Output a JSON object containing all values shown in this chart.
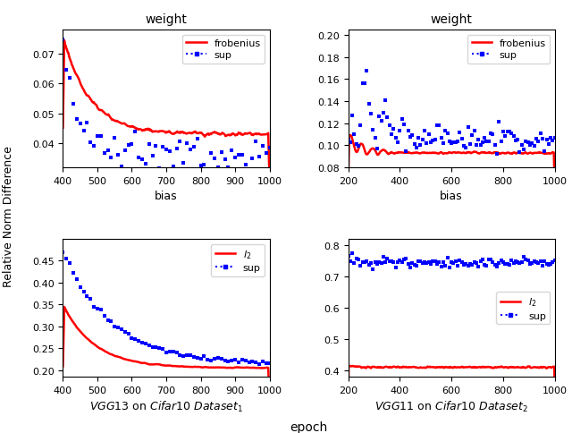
{
  "fig_width": 6.4,
  "fig_height": 4.85,
  "dpi": 100,
  "colors": {
    "red": "#ff0000",
    "blue": "#0000ff"
  },
  "ylabel": "Relative Norm Difference",
  "bottom_xlabel": "epoch",
  "subplots": {
    "top_left": {
      "title": "weight",
      "xlabel": "bias",
      "xlim": [
        400,
        1000
      ],
      "ylim": [
        0.032,
        0.078
      ],
      "yticks": [
        0.04,
        0.05,
        0.06,
        0.07
      ],
      "legend_labels": [
        "frobenius",
        "sup"
      ],
      "legend_loc": "upper right"
    },
    "top_right": {
      "title": "weight",
      "xlabel": "bias",
      "xlim": [
        200,
        1000
      ],
      "ylim": [
        0.08,
        0.205
      ],
      "yticks": [
        0.08,
        0.1,
        0.12,
        0.14,
        0.16,
        0.18,
        0.2
      ],
      "legend_labels": [
        "frobenius",
        "sup"
      ],
      "legend_loc": "upper right"
    },
    "bottom_left": {
      "xlabel": "VGG13 on Cifar10 Dataset_1",
      "xlim": [
        400,
        1000
      ],
      "ylim": [
        0.185,
        0.5
      ],
      "yticks": [
        0.2,
        0.25,
        0.3,
        0.35,
        0.4,
        0.45
      ],
      "legend_labels": [
        "l_2",
        "sup"
      ],
      "legend_loc": "upper right"
    },
    "bottom_right": {
      "xlabel": "VGG11 on Cifar10 Dataset_2",
      "xlim": [
        200,
        1000
      ],
      "ylim": [
        0.38,
        0.82
      ],
      "yticks": [
        0.4,
        0.5,
        0.6,
        0.7,
        0.8
      ],
      "legend_labels": [
        "l_2",
        "sup"
      ],
      "legend_loc": "center right"
    }
  }
}
